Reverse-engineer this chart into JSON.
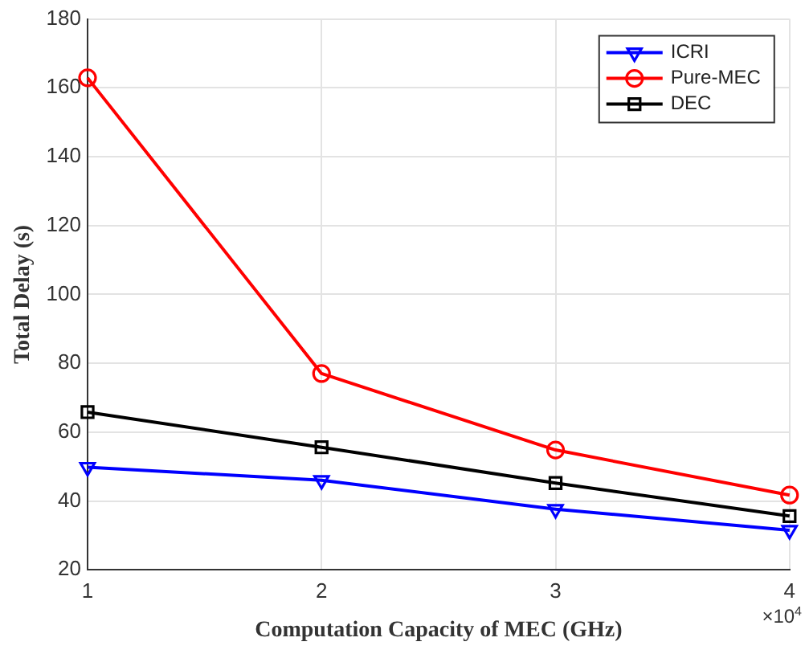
{
  "chart_data": {
    "type": "line",
    "xlabel": "Computation Capacity of MEC (GHz)",
    "ylabel": "Total Delay (s)",
    "x": [
      1,
      2,
      3,
      4
    ],
    "series": [
      {
        "name": "ICRI",
        "color": "#0000ff",
        "marker": "triangle",
        "values": [
          49.8,
          46,
          37.6,
          31.5
        ]
      },
      {
        "name": "Pure-MEC",
        "color": "#ff0000",
        "marker": "circle",
        "values": [
          162.9,
          77,
          54.8,
          41.7
        ]
      },
      {
        "name": "DEC",
        "color": "#000000",
        "marker": "square",
        "values": [
          65.8,
          55.6,
          45.2,
          35.6
        ]
      }
    ],
    "xlim": [
      1,
      4
    ],
    "xticks": [
      1,
      2,
      3,
      4
    ],
    "ylim": [
      20,
      180
    ],
    "yticks": [
      20,
      40,
      60,
      80,
      100,
      120,
      140,
      160,
      180
    ],
    "annotations": [
      "×10$^{4}$"
    ],
    "grid": true,
    "legend": "top right",
    "line_style": "solid"
  }
}
